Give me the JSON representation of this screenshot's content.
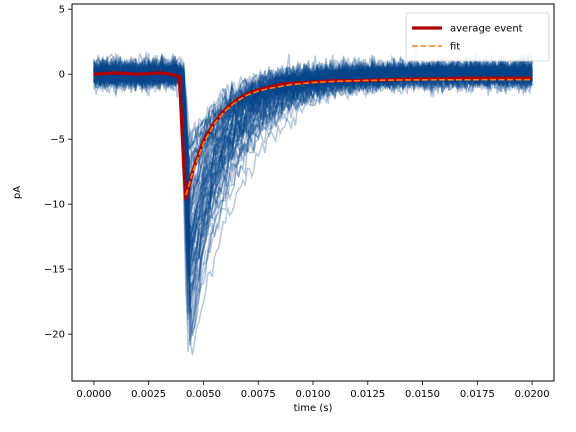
{
  "chart_data": {
    "type": "line",
    "title": "",
    "xlabel": "time (s)",
    "ylabel": "pA",
    "xlim": [
      -0.001,
      0.021
    ],
    "ylim": [
      -23.6,
      5.4
    ],
    "x_ticks": [
      0.0,
      0.0025,
      0.005,
      0.0075,
      0.01,
      0.0125,
      0.015,
      0.0175,
      0.02
    ],
    "x_tick_labels": [
      "0.0000",
      "0.0025",
      "0.0050",
      "0.0075",
      "0.0100",
      "0.0125",
      "0.0150",
      "0.0175",
      "0.0200"
    ],
    "y_ticks": [
      5,
      0,
      -5,
      -10,
      -15,
      -20
    ],
    "y_tick_labels": [
      "5",
      "0",
      "−5",
      "−10",
      "−15",
      "−20"
    ],
    "legend_position": "top-right",
    "grid": false,
    "series": [
      {
        "name": "average event",
        "color": "#b30000",
        "style": "solid-thick",
        "x": [
          0.0,
          0.001,
          0.002,
          0.003,
          0.0035,
          0.0039,
          0.0041,
          0.0042,
          0.0045,
          0.005,
          0.0055,
          0.006,
          0.0065,
          0.007,
          0.0075,
          0.008,
          0.0085,
          0.009,
          0.01,
          0.011,
          0.012,
          0.013,
          0.014,
          0.015,
          0.016,
          0.017,
          0.018,
          0.019,
          0.02
        ],
        "values": [
          0.0,
          0.1,
          0.0,
          0.1,
          0.0,
          -0.2,
          -7.0,
          -9.6,
          -7.5,
          -5.1,
          -3.7,
          -2.7,
          -2.0,
          -1.5,
          -1.2,
          -1.0,
          -0.8,
          -0.7,
          -0.6,
          -0.5,
          -0.5,
          -0.45,
          -0.4,
          -0.35,
          -0.35,
          -0.3,
          -0.3,
          -0.3,
          -0.3
        ]
      },
      {
        "name": "fit",
        "color": "#ff7f0e",
        "style": "dashed",
        "x": [
          0.0042,
          0.0045,
          0.005,
          0.0055,
          0.006,
          0.0065,
          0.007,
          0.0075,
          0.008,
          0.009,
          0.01,
          0.011,
          0.012,
          0.013,
          0.014,
          0.015,
          0.016,
          0.017,
          0.018,
          0.019,
          0.02
        ],
        "values": [
          -9.3,
          -7.6,
          -5.3,
          -3.8,
          -2.8,
          -2.1,
          -1.6,
          -1.3,
          -1.1,
          -0.8,
          -0.65,
          -0.55,
          -0.5,
          -0.47,
          -0.45,
          -0.44,
          -0.43,
          -0.43,
          -0.42,
          -0.42,
          -0.42
        ]
      }
    ],
    "individual_traces": {
      "color": "#08478a",
      "count": 80,
      "baseline_noise_pA": 1.2,
      "min_peak_pA": -22.3
    }
  }
}
